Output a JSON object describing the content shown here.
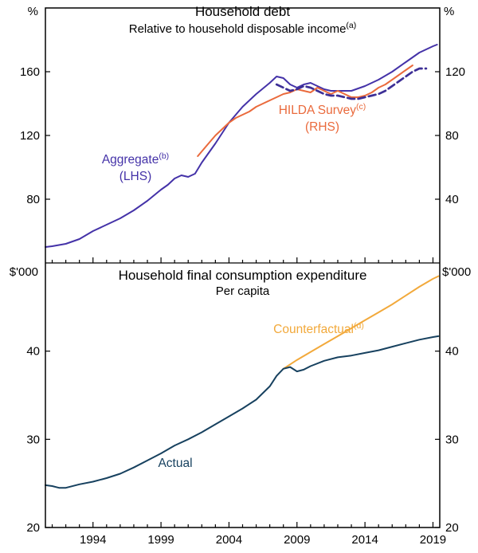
{
  "colors": {
    "aggregate": "#4432a8",
    "hilda": "#ea6a3c",
    "hilda_dashed": "#3d2f96",
    "actual": "#17415f",
    "counterfactual": "#f2a93b",
    "axis": "#000000",
    "background": "#ffffff"
  },
  "top_panel": {
    "title": "Household debt",
    "subtitle": "Relative to household disposable income",
    "subtitle_sup": "(a)",
    "unit_left": "%",
    "unit_right": "%",
    "aggregate_label": "Aggregate",
    "aggregate_sup": "(b)",
    "aggregate_sub": "(LHS)",
    "hilda_label": "HILDA Survey",
    "hilda_sup": "(c)",
    "hilda_sub": "(RHS)"
  },
  "bottom_panel": {
    "title": "Household final consumption expenditure",
    "subtitle": "Per capita",
    "unit_left": "$'000",
    "unit_right": "$'000",
    "counterfactual_label": "Counterfactual",
    "counterfactual_sup": "(d)",
    "actual_label": "Actual"
  },
  "chart_data": [
    {
      "type": "line",
      "title": "Household debt",
      "subtitle": "Relative to household disposable income (a)",
      "x_range": [
        1990.5,
        2019.5
      ],
      "x_ticks_labeled": [
        1994,
        1999,
        2004,
        2009,
        2014,
        2019
      ],
      "x_minor_tick_step": 1,
      "grid": false,
      "legend": "in-plot annotations",
      "left_axis": {
        "unit": "%",
        "range": [
          40,
          200
        ],
        "ticks": [
          80,
          120,
          160
        ]
      },
      "right_axis": {
        "unit": "%",
        "range": [
          0,
          160
        ],
        "ticks": [
          40,
          80,
          120
        ]
      },
      "series": [
        {
          "label": "Aggregate (LHS)",
          "axis": "left",
          "color": "#4432a8",
          "line": "solid",
          "width": 2,
          "x": [
            1990.5,
            1991,
            1992,
            1993,
            1994,
            1995,
            1996,
            1997,
            1998,
            1999,
            1999.5,
            2000,
            2000.5,
            2001,
            2001.5,
            2002,
            2003,
            2004,
            2005,
            2006,
            2007,
            2007.5,
            2008,
            2008.5,
            2009,
            2009.5,
            2010,
            2010.5,
            2011,
            2011.5,
            2012,
            2013,
            2014,
            2015,
            2016,
            2017,
            2018,
            2019,
            2019.3
          ],
          "y": [
            50,
            50.5,
            52,
            55,
            60,
            64,
            68,
            73,
            79,
            86,
            89,
            93,
            95,
            94,
            96,
            103,
            115,
            128,
            138,
            146,
            153,
            157,
            156,
            152,
            150,
            152,
            153,
            151,
            149,
            148,
            148,
            148,
            151,
            155,
            160,
            166,
            172,
            176,
            177
          ]
        },
        {
          "label": "HILDA Survey (RHS)",
          "axis": "right",
          "color": "#ea6a3c",
          "line": "solid",
          "width": 2,
          "x": [
            2001.7,
            2002,
            2002.5,
            2003,
            2003.5,
            2004,
            2004.5,
            2005,
            2005.5,
            2006,
            2006.5,
            2007,
            2007.5,
            2008,
            2008.5,
            2009,
            2009.5,
            2010,
            2010.5,
            2011,
            2011.5,
            2012,
            2012.5,
            2013,
            2013.5,
            2014,
            2014.5,
            2015,
            2015.5,
            2016,
            2016.5,
            2017,
            2017.5
          ],
          "y": [
            67,
            70,
            75,
            80,
            84,
            88,
            91,
            93,
            95,
            98,
            100,
            102,
            104,
            106,
            107,
            109,
            108,
            107,
            110,
            108,
            106,
            108,
            106,
            104,
            104,
            105,
            107,
            110,
            112,
            115,
            118,
            121,
            124
          ]
        },
        {
          "label": "HILDA Survey alternative measure (RHS, dashed)",
          "axis": "right",
          "color": "#3d2f96",
          "line": "dashed",
          "width": 2.7,
          "x": [
            2007.5,
            2008,
            2008.5,
            2009,
            2009.5,
            2010,
            2010.5,
            2011,
            2011.5,
            2012,
            2012.5,
            2013,
            2013.5,
            2014,
            2014.5,
            2015,
            2015.5,
            2016,
            2016.5,
            2017,
            2017.5,
            2018,
            2018.5
          ],
          "y": [
            112,
            110,
            108,
            109,
            111,
            110,
            108,
            106,
            105,
            105,
            104,
            103,
            103,
            104,
            105,
            106,
            108,
            111,
            114,
            117,
            120,
            122,
            122
          ]
        }
      ]
    },
    {
      "type": "line",
      "title": "Household final consumption expenditure",
      "subtitle": "Per capita",
      "x_range": [
        1990.5,
        2019.5
      ],
      "x_ticks_labeled": [
        1994,
        1999,
        2004,
        2009,
        2014,
        2019
      ],
      "x_minor_tick_step": 1,
      "grid": false,
      "legend": "in-plot annotations",
      "left_axis": {
        "unit": "$'000",
        "range": [
          20,
          50
        ],
        "ticks": [
          20,
          30,
          40
        ]
      },
      "right_axis": {
        "unit": "$'000",
        "range": [
          20,
          50
        ],
        "ticks": [
          20,
          30,
          40
        ]
      },
      "series": [
        {
          "label": "Counterfactual",
          "axis": "left",
          "color": "#f2a93b",
          "line": "solid",
          "width": 2,
          "x": [
            2008,
            2008.5,
            2009,
            2010,
            2011,
            2012,
            2013,
            2014,
            2015,
            2016,
            2017,
            2018,
            2019,
            2019.4
          ],
          "y": [
            38.0,
            38.5,
            39.0,
            39.9,
            40.8,
            41.7,
            42.6,
            43.5,
            44.4,
            45.3,
            46.3,
            47.3,
            48.2,
            48.5
          ]
        },
        {
          "label": "Actual",
          "axis": "left",
          "color": "#17415f",
          "line": "solid",
          "width": 2,
          "x": [
            1990.5,
            1991,
            1991.5,
            1992,
            1993,
            1994,
            1995,
            1996,
            1997,
            1998,
            1999,
            2000,
            2001,
            2002,
            2003,
            2004,
            2005,
            2006,
            2007,
            2007.5,
            2008,
            2008.5,
            2009,
            2009.5,
            2010,
            2011,
            2012,
            2013,
            2014,
            2015,
            2016,
            2017,
            2018,
            2019,
            2019.4
          ],
          "y": [
            24.8,
            24.7,
            24.5,
            24.5,
            24.9,
            25.2,
            25.6,
            26.1,
            26.8,
            27.6,
            28.4,
            29.3,
            30.0,
            30.8,
            31.7,
            32.6,
            33.5,
            34.5,
            36.0,
            37.2,
            38.0,
            38.2,
            37.7,
            37.9,
            38.3,
            38.9,
            39.3,
            39.5,
            39.8,
            40.1,
            40.5,
            40.9,
            41.3,
            41.6,
            41.7
          ]
        }
      ]
    }
  ]
}
